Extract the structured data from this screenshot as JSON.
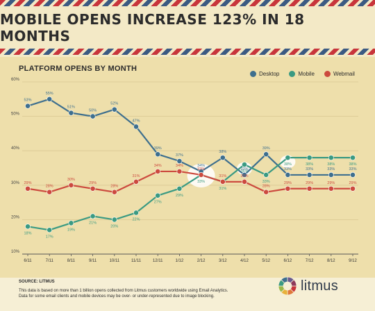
{
  "headline": "MOBILE OPENS INCREASE 123% IN 18 MONTHS",
  "chart_data": {
    "type": "line",
    "title": "PLATFORM OPENS BY MONTH",
    "categories": [
      "6/11",
      "7/11",
      "8/11",
      "9/11",
      "10/11",
      "11/11",
      "12/11",
      "1/12",
      "2/12",
      "3/12",
      "4/12",
      "5/12",
      "6/12",
      "7/12",
      "8/12",
      "9/12"
    ],
    "ylim": [
      10,
      60
    ],
    "yticks": [
      10,
      20,
      30,
      40,
      50,
      60
    ],
    "ytick_labels": [
      "10%",
      "20%",
      "30%",
      "40%",
      "50%",
      "60%"
    ],
    "grid": true,
    "legend_position": "top-right",
    "series": [
      {
        "name": "Desktop",
        "color": "#3e6f8e",
        "values": [
          53,
          55,
          51,
          50,
          52,
          47,
          39,
          37,
          34,
          38,
          33,
          39,
          33,
          33,
          33,
          33
        ],
        "labels": [
          "53%",
          "55%",
          "51%",
          "50%",
          "52%",
          "47%",
          "39%",
          "37%",
          "34%",
          "38%",
          "33%",
          "39%",
          "33%",
          "33%",
          "33%",
          "33%"
        ]
      },
      {
        "name": "Mobile",
        "color": "#3a9a82",
        "values": [
          18,
          17,
          19,
          21,
          20,
          22,
          27,
          29,
          33,
          31,
          36,
          33,
          38,
          38,
          38,
          38
        ],
        "labels": [
          "18%",
          "17%",
          "19%",
          "21%",
          "20%",
          "22%",
          "27%",
          "29%",
          "33%",
          "31%",
          "36%",
          "33%",
          "38%",
          "38%",
          "38%",
          "38%"
        ]
      },
      {
        "name": "Webmail",
        "color": "#cc4a3e",
        "values": [
          29,
          28,
          30,
          29,
          28,
          31,
          34,
          34,
          33,
          31,
          31,
          28,
          29,
          29,
          29,
          29
        ],
        "labels": [
          "29%",
          "28%",
          "30%",
          "29%",
          "28%",
          "31%",
          "34%",
          "34%",
          "33%",
          "31%",
          "31%",
          "28%",
          "29%",
          "29%",
          "29%",
          "29%"
        ]
      }
    ]
  },
  "footer": {
    "source": "SOURCE: LITMUS",
    "note1": "This data is based on more than 1 billion opens collected from Litmus customers worldwide using Email Analytics.",
    "note2": "Data for some email clients and mobile devices may be over- or under-represented due to image blocking.",
    "logo_text": "litmus",
    "logo_colors": [
      "#c8353b",
      "#e0783a",
      "#e8b13a",
      "#9bb84a",
      "#3a9a82",
      "#3e6f8e",
      "#6a5a8e",
      "#8e3a5a"
    ]
  }
}
